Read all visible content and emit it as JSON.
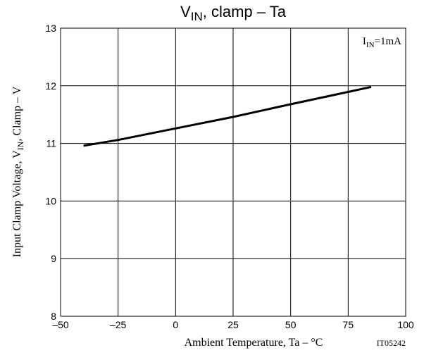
{
  "chart_data": {
    "type": "line",
    "title": {
      "main": "V",
      "sub": "IN",
      "rest": ", clamp  –  Ta"
    },
    "xlabel": "Ambient Temperature, Ta  –  °C",
    "ylabel": {
      "pre": "Input Clamp Voltage, V",
      "sub": "IN",
      "post": ", Clamp  –  V"
    },
    "annotation": {
      "main": "I",
      "sub": "IN",
      "rest": "=1mA"
    },
    "figure_id": "IT05242",
    "xlim": [
      -50,
      100
    ],
    "ylim": [
      8,
      13
    ],
    "xticks": [
      -50,
      -25,
      0,
      25,
      50,
      75,
      100
    ],
    "xtick_labels": [
      "–50",
      "–25",
      "0",
      "25",
      "50",
      "75",
      "100"
    ],
    "yticks": [
      8,
      9,
      10,
      11,
      12,
      13
    ],
    "ytick_labels": [
      "8",
      "9",
      "10",
      "11",
      "12",
      "13"
    ],
    "grid": true,
    "series": [
      {
        "x": [
          -40,
          -25,
          0,
          25,
          50,
          85
        ],
        "y": [
          10.96,
          11.06,
          11.26,
          11.46,
          11.68,
          11.98
        ]
      }
    ]
  }
}
